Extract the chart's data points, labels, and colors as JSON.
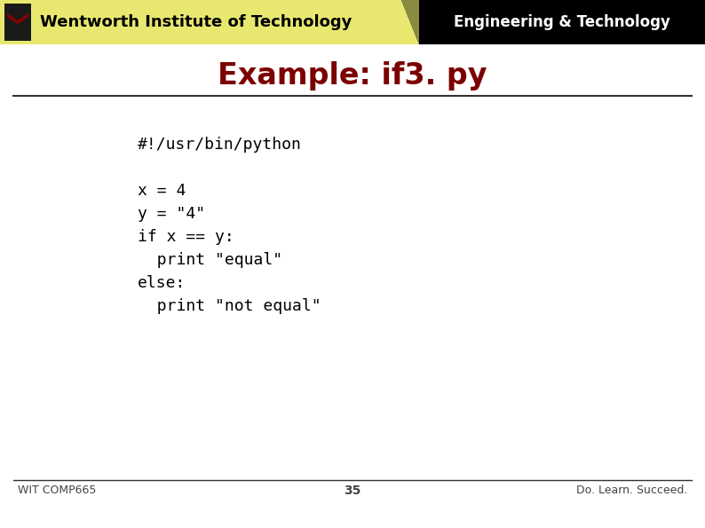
{
  "title": "Example: if3. py",
  "title_color": "#7B0000",
  "header_left_text": "Wentworth Institute of Technology",
  "header_right_text": "Engineering & Technology",
  "header_left_bg": "#E8E870",
  "header_right_bg": "#000000",
  "header_right_text_color": "#FFFFFF",
  "header_left_text_color": "#000000",
  "code_lines": [
    "#!/usr/bin/python",
    "",
    "x = 4",
    "y = \"4\"",
    "if x == y:",
    "  print \"equal\"",
    "else:",
    "  print \"not equal\""
  ],
  "footer_left": "WIT COMP665",
  "footer_center": "35",
  "footer_right": "Do. Learn. Succeed.",
  "footer_text_color": "#444444",
  "bg_color": "#FFFFFF",
  "separator_color": "#333333",
  "code_font_size": 13,
  "title_font_size": 24
}
